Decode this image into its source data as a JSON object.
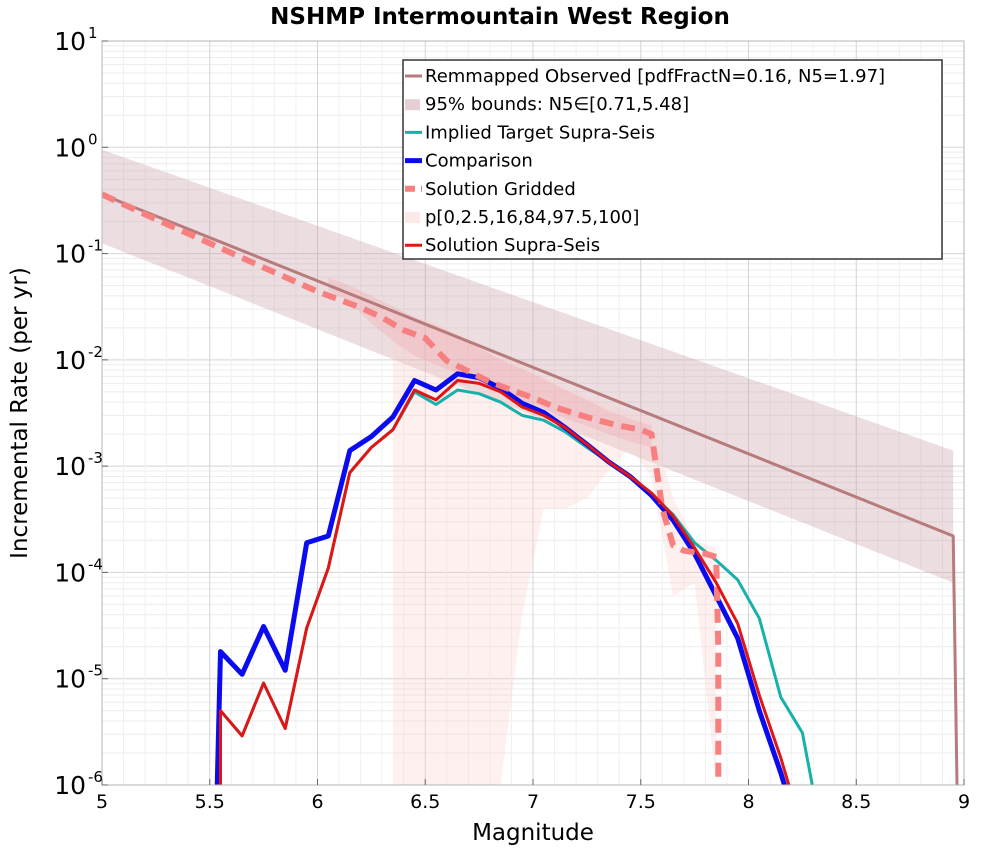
{
  "chart_data": {
    "type": "line",
    "title": "NSHMP Intermountain West Region",
    "xlabel": "Magnitude",
    "ylabel": "Incremental Rate (per yr)",
    "xlim": [
      5,
      9
    ],
    "ylim": [
      1e-06,
      10
    ],
    "yscale": "log",
    "grid": true,
    "legend_position": "top-right",
    "x_ticks": [
      "5",
      "5.5",
      "6",
      "6.5",
      "7",
      "7.5",
      "8",
      "8.5",
      "9"
    ],
    "x_tick_values": [
      5,
      5.5,
      6,
      6.5,
      7,
      7.5,
      8,
      8.5,
      9
    ],
    "y_ticks": [
      {
        "base": "10",
        "exp": "-6",
        "value": 1e-06
      },
      {
        "base": "10",
        "exp": "-5",
        "value": 1e-05
      },
      {
        "base": "10",
        "exp": "-4",
        "value": 0.0001
      },
      {
        "base": "10",
        "exp": "-3",
        "value": 0.001
      },
      {
        "base": "10",
        "exp": "-2",
        "value": 0.01
      },
      {
        "base": "10",
        "exp": "-1",
        "value": 0.1
      },
      {
        "base": "10",
        "exp": "0",
        "value": 1
      },
      {
        "base": "10",
        "exp": "1",
        "value": 10
      }
    ],
    "bands": [
      {
        "name": "95% bounds: N5∈[0.71,5.48]",
        "color": "#c9a0a7",
        "opacity": 0.35,
        "x": [
          5.0,
          8.95
        ],
        "lower": [
          0.125,
          8e-05
        ],
        "upper": [
          0.95,
          0.0014
        ]
      },
      {
        "name": "p[0,2.5,16,84,97.5,100]",
        "color": "#ffc8c8",
        "opacity": 0.28,
        "x": [
          6.35,
          6.45,
          6.55,
          6.65,
          6.75,
          6.85,
          6.95,
          7.05,
          7.15,
          7.25,
          7.35,
          7.45,
          7.55,
          7.65,
          7.75,
          7.85
        ],
        "lower": [
          1e-06,
          1e-06,
          1e-06,
          1e-06,
          1e-06,
          1e-06,
          4e-05,
          0.0004,
          0.0004,
          0.0005,
          0.0009,
          0.0015,
          0.0008,
          6e-05,
          8e-05,
          1e-06
        ],
        "upper": [
          0.03,
          0.026,
          0.022,
          0.018,
          0.014,
          0.011,
          0.009,
          0.007,
          0.0055,
          0.0045,
          0.0038,
          0.0032,
          0.0028,
          0.0005,
          0.0002,
          0.00017
        ]
      },
      {
        "name": "p[0,2.5,16,84,97.5,100] inner",
        "color": "#f0a0a8",
        "opacity": 0.3,
        "x": [
          6.05,
          6.15,
          6.25,
          6.35,
          6.45,
          6.55,
          6.65,
          6.75,
          6.85,
          6.95,
          7.05,
          7.15,
          7.25,
          7.35,
          7.45,
          7.55
        ],
        "lower": [
          0.045,
          0.035,
          0.022,
          0.015,
          0.011,
          0.009,
          0.0075,
          0.0065,
          0.0052,
          0.0042,
          0.0035,
          0.0028,
          0.0024,
          0.002,
          0.0017,
          0.0015
        ],
        "upper": [
          0.06,
          0.05,
          0.04,
          0.032,
          0.025,
          0.021,
          0.017,
          0.013,
          0.01,
          0.0082,
          0.0066,
          0.0052,
          0.0042,
          0.0033,
          0.0028,
          0.0024
        ]
      }
    ],
    "series": [
      {
        "name": "Remmapped Observed [pdfFractN=0.16, N5=1.97]",
        "color": "#b87b7b",
        "width": 3,
        "dash": "",
        "x": [
          5.0,
          8.95,
          8.97
        ],
        "y": [
          0.36,
          0.00022,
          5e-07
        ]
      },
      {
        "name": "Implied Target Supra-Seis",
        "color": "#17b0aa",
        "width": 3,
        "dash": "",
        "x": [
          5.55,
          5.55,
          5.65,
          5.75,
          5.85,
          5.95,
          6.05,
          6.15,
          6.25,
          6.35,
          6.45,
          6.55,
          6.65,
          6.75,
          6.85,
          6.95,
          7.05,
          7.15,
          7.25,
          7.35,
          7.45,
          7.55,
          7.65,
          7.75,
          7.85,
          7.95,
          8.05,
          8.15,
          8.25,
          8.3
        ],
        "y": [
          4e-07,
          5e-06,
          2.9e-06,
          9.1e-06,
          3.4e-06,
          3e-05,
          0.00011,
          0.00087,
          0.0015,
          0.0022,
          0.005,
          0.0038,
          0.0052,
          0.0048,
          0.004,
          0.003,
          0.0027,
          0.0021,
          0.0015,
          0.0011,
          0.0008,
          0.00055,
          0.00035,
          0.00019,
          0.00013,
          8.5e-05,
          3.7e-05,
          6.7e-06,
          3.1e-06,
          9e-07
        ]
      },
      {
        "name": "Comparison",
        "color": "#0b0bef",
        "width": 5,
        "dash": "",
        "x": [
          5.53,
          5.55,
          5.65,
          5.75,
          5.85,
          5.95,
          6.05,
          6.15,
          6.25,
          6.35,
          6.45,
          6.55,
          6.65,
          6.75,
          6.85,
          6.95,
          7.05,
          7.15,
          7.25,
          7.35,
          7.45,
          7.55,
          7.65,
          7.75,
          7.85,
          7.95,
          8.05,
          8.15,
          8.2
        ],
        "y": [
          4e-07,
          1.8e-05,
          1.1e-05,
          3.1e-05,
          1.2e-05,
          0.00019,
          0.00022,
          0.0014,
          0.0019,
          0.0029,
          0.0064,
          0.0052,
          0.0074,
          0.0068,
          0.0054,
          0.0039,
          0.0032,
          0.0023,
          0.0016,
          0.0011,
          0.0008,
          0.00053,
          0.00031,
          0.00015,
          6e-05,
          2.4e-05,
          5e-06,
          1.3e-06,
          6e-07
        ]
      },
      {
        "name": "Solution Gridded",
        "color": "#f77f7f",
        "width": 6,
        "dash": "14,8",
        "x": [
          5.0,
          5.25,
          5.5,
          5.75,
          6.0,
          6.1,
          6.2,
          6.3,
          6.4,
          6.5,
          6.55,
          6.6,
          6.7,
          6.8,
          6.9,
          7.0,
          7.1,
          7.2,
          7.3,
          7.4,
          7.5,
          7.55,
          7.6,
          7.65,
          7.7,
          7.8,
          7.85,
          7.86,
          7.86
        ],
        "y": [
          0.36,
          0.21,
          0.125,
          0.074,
          0.044,
          0.037,
          0.031,
          0.025,
          0.019,
          0.016,
          0.0125,
          0.0098,
          0.0078,
          0.0062,
          0.0052,
          0.0044,
          0.0036,
          0.0031,
          0.0027,
          0.0024,
          0.0022,
          0.002,
          0.0004,
          0.00018,
          0.00016,
          0.00015,
          0.00014,
          2e-05,
          5e-07
        ]
      },
      {
        "name": "Solution Supra-Seis",
        "color": "#e01515",
        "width": 3,
        "dash": "",
        "x": [
          5.55,
          5.55,
          5.65,
          5.75,
          5.85,
          5.95,
          6.05,
          6.15,
          6.25,
          6.35,
          6.45,
          6.55,
          6.65,
          6.75,
          6.85,
          6.95,
          7.05,
          7.15,
          7.25,
          7.35,
          7.45,
          7.55,
          7.65,
          7.75,
          7.85,
          7.95,
          8.05,
          8.15,
          8.22
        ],
        "y": [
          4e-07,
          5e-06,
          2.9e-06,
          9.1e-06,
          3.4e-06,
          3e-05,
          0.00011,
          0.00087,
          0.0015,
          0.0022,
          0.0052,
          0.0042,
          0.0064,
          0.006,
          0.005,
          0.0036,
          0.003,
          0.0023,
          0.0016,
          0.0011,
          0.0008,
          0.00056,
          0.00034,
          0.00017,
          8e-05,
          3.3e-05,
          7e-06,
          1.8e-06,
          6e-07
        ]
      }
    ],
    "legend": [
      {
        "label": "Remmapped Observed [pdfFractN=0.16, N5=1.97]",
        "color": "#b87b7b",
        "kind": "line",
        "width": 3,
        "dash": ""
      },
      {
        "label": "95% bounds: N5∈[0.71,5.48]",
        "color": "#e6cfd3",
        "kind": "box",
        "width": 10,
        "dash": ""
      },
      {
        "label": "Implied Target Supra-Seis",
        "color": "#17b0aa",
        "kind": "line",
        "width": 3,
        "dash": ""
      },
      {
        "label": "Comparison",
        "color": "#0b0bef",
        "kind": "line",
        "width": 5,
        "dash": ""
      },
      {
        "label": "Solution Gridded",
        "color": "#f77f7f",
        "kind": "line",
        "width": 6,
        "dash": "10,6"
      },
      {
        "label": "p[0,2.5,16,84,97.5,100]",
        "color": "#fde8e8",
        "kind": "box",
        "width": 10,
        "dash": ""
      },
      {
        "label": "Solution Supra-Seis",
        "color": "#e01515",
        "kind": "line",
        "width": 3,
        "dash": ""
      }
    ]
  }
}
